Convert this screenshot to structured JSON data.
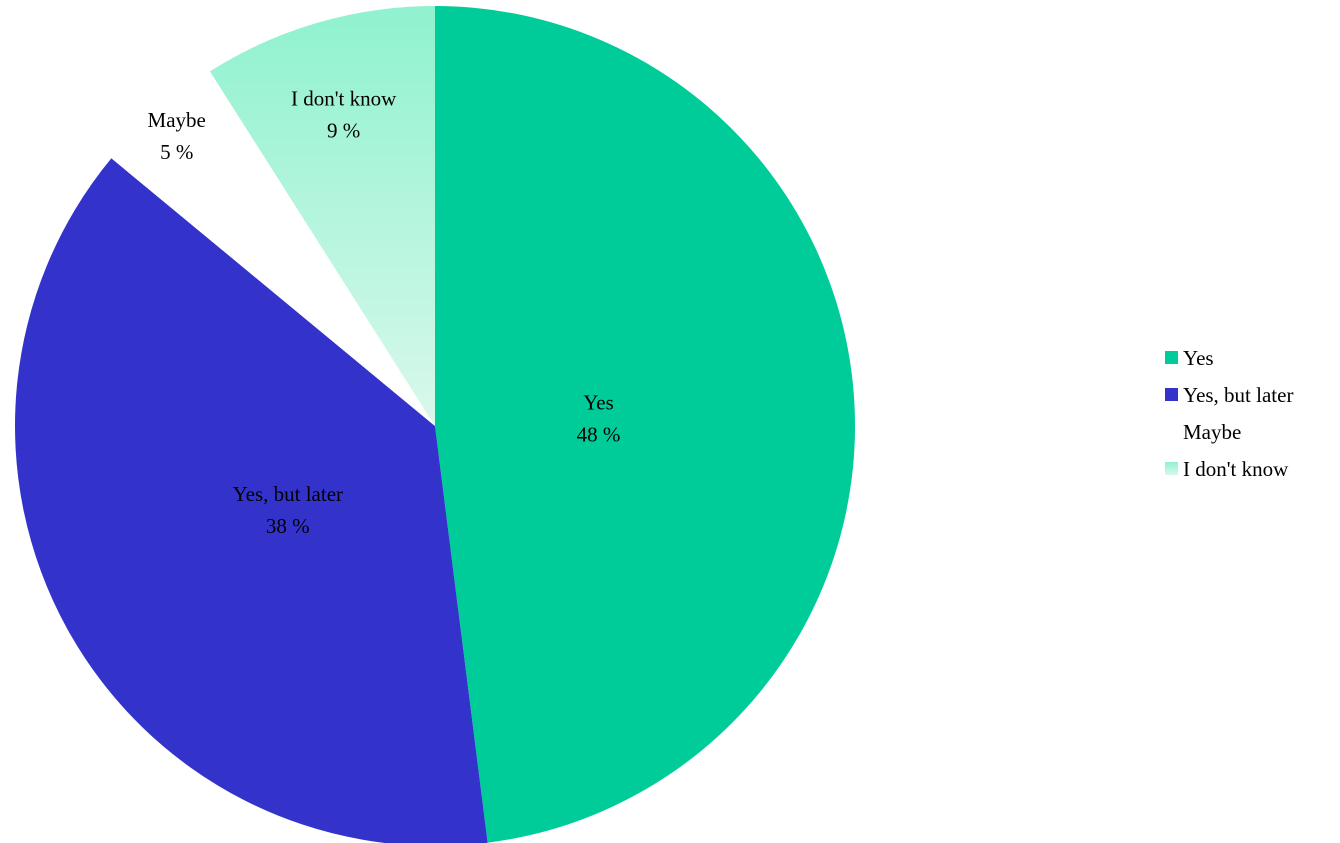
{
  "chart_data": {
    "type": "pie",
    "categories": [
      "Yes",
      "Yes, but later",
      "Maybe",
      "I don't know"
    ],
    "values": [
      48,
      38,
      5,
      9
    ],
    "value_labels": [
      "48 %",
      "38 %",
      "5 %",
      "9 %"
    ],
    "colors": [
      "#00CC99",
      "#3333CC",
      "#FFFFFF",
      "#8FF2CE"
    ],
    "start_angle_deg": 0,
    "direction": "clockwise",
    "legend": {
      "position": "right",
      "entries": [
        "Yes",
        "Yes, but later",
        "Maybe",
        "I don't know"
      ]
    },
    "title": ""
  }
}
